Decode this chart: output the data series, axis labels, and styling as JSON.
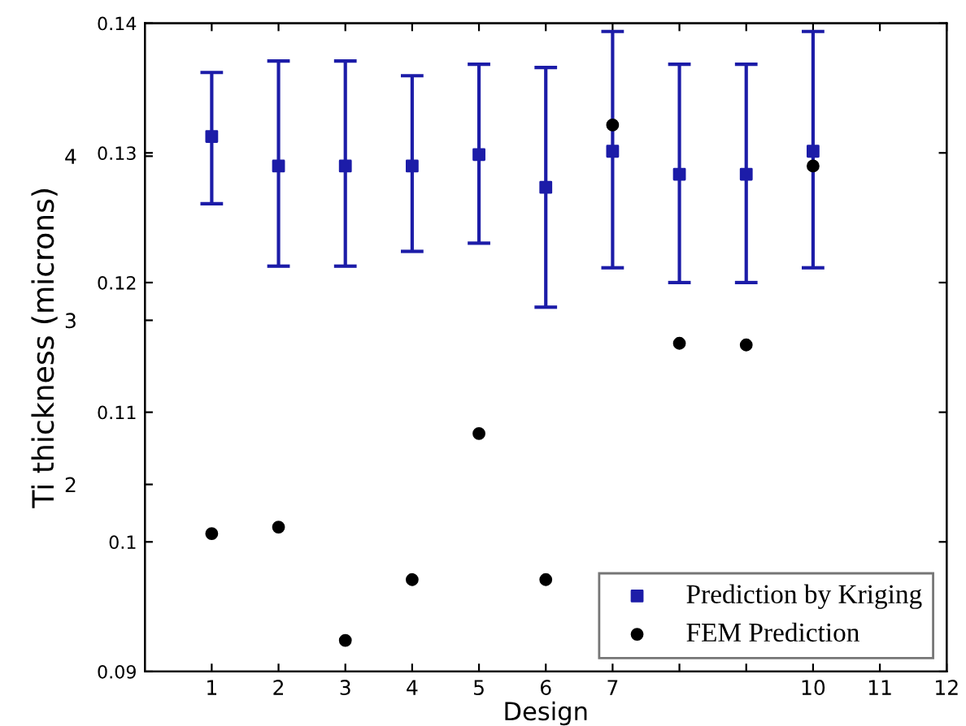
{
  "chart_data": {
    "type": "scatter",
    "xlabel": "Design",
    "ylabel": "Ti thickness (microns)",
    "x": [
      1,
      2,
      3,
      4,
      5,
      6,
      7,
      8,
      9,
      10
    ],
    "series": [
      {
        "name": "Prediction by Kriging",
        "color": "#1c1ca8",
        "marker": "square",
        "values": [
          4.12,
          3.94,
          3.94,
          3.94,
          4.01,
          3.81,
          4.03,
          3.89,
          3.89,
          4.03
        ],
        "errors": [
          [
            3.71,
            4.51
          ],
          [
            3.33,
            4.58
          ],
          [
            3.33,
            4.58
          ],
          [
            3.42,
            4.49
          ],
          [
            3.47,
            4.56
          ],
          [
            3.08,
            4.54
          ],
          [
            3.32,
            4.76
          ],
          [
            3.23,
            4.56
          ],
          [
            3.23,
            4.56
          ],
          [
            3.32,
            4.76
          ]
        ]
      },
      {
        "name": "FEM Prediction",
        "color": "#000000",
        "marker": "circle",
        "values": [
          1.7,
          1.74,
          1.05,
          1.42,
          2.31,
          1.42,
          4.19,
          2.86,
          2.85,
          3.94
        ]
      }
    ],
    "xlim": [
      0,
      12
    ],
    "xticks": [
      1,
      2,
      3,
      4,
      5,
      6,
      7,
      {
        "value": 8,
        "label": null
      },
      {
        "value": 9,
        "label": null
      },
      10,
      11,
      12
    ],
    "ylim": [
      0.86,
      4.81
    ],
    "yticks": [
      2,
      3,
      4
    ],
    "y2lim": [
      0.09,
      0.14
    ],
    "y2ticks": [
      0.09,
      0.1,
      0.11,
      0.12,
      0.13,
      0.14
    ],
    "grid": false,
    "legend": "bottom right"
  }
}
